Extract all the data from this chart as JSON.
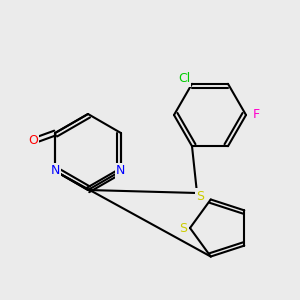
{
  "bg_color": "#ebebeb",
  "bond_color": "#000000",
  "bond_width": 1.5,
  "atom_colors": {
    "N": "#0000ff",
    "O": "#ff0000",
    "S": "#cccc00",
    "S_thio": "#cccc00",
    "Cl": "#00cc00",
    "F": "#ff00cc"
  },
  "font_size": 9,
  "label_font_size": 9
}
